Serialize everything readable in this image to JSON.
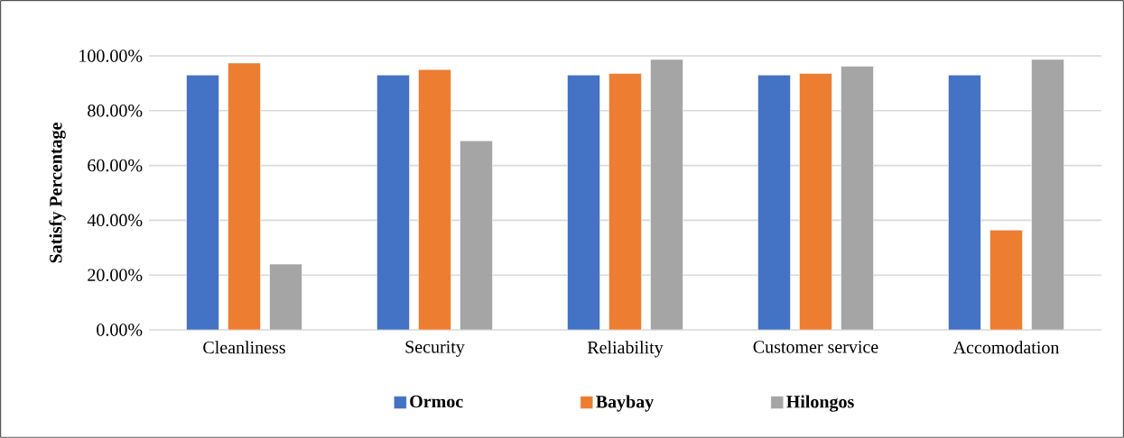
{
  "chart_data": {
    "type": "bar",
    "ylabel": "Satisfy Percentage",
    "categories": [
      "Cleanliness",
      "Security",
      "Reliability",
      "Customer service",
      "Accomodation"
    ],
    "series": [
      {
        "name": "Ormoc",
        "color": "#4472c4",
        "values": [
          93,
          93,
          93,
          93,
          93
        ]
      },
      {
        "name": "Baybay",
        "color": "#ed7d31",
        "values": [
          97.4,
          95,
          93.6,
          93.6,
          36.4
        ]
      },
      {
        "name": "Hilongos",
        "color": "#a5a5a5",
        "values": [
          24,
          69,
          98.7,
          96.2,
          98.7
        ]
      }
    ],
    "ylim": [
      0,
      100
    ],
    "yticks": [
      {
        "value": 0,
        "label": "0.00%"
      },
      {
        "value": 20,
        "label": "20.00%"
      },
      {
        "value": 40,
        "label": "40.00%"
      },
      {
        "value": 60,
        "label": "60.00%"
      },
      {
        "value": 80,
        "label": "80.00%"
      },
      {
        "value": 100,
        "label": "100.00%"
      }
    ],
    "grid": "y",
    "legend": "bottom"
  }
}
